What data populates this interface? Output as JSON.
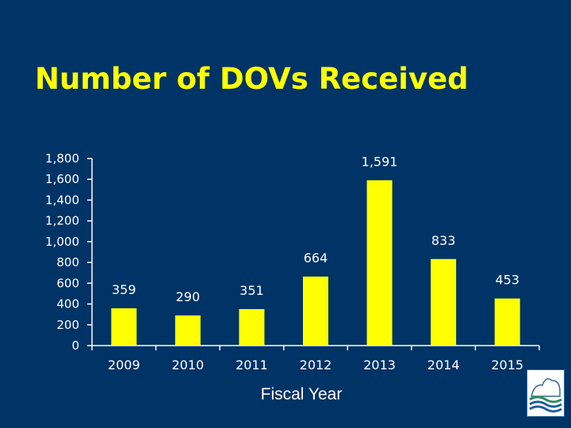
{
  "slide": {
    "title": "Number of DOVs Received",
    "background_color": "#003366",
    "title_color": "#ffff00",
    "logo_icon": "agency-seal-icon"
  },
  "chart_data": {
    "type": "bar",
    "title": "Number of DOVs Received",
    "xlabel": "Fiscal Year",
    "ylabel": "",
    "categories": [
      "2009",
      "2010",
      "2011",
      "2012",
      "2013",
      "2014",
      "2015"
    ],
    "values": [
      359,
      290,
      351,
      664,
      1591,
      833,
      453
    ],
    "value_labels": [
      "359",
      "290",
      "351",
      "664",
      "1,591",
      "833",
      "453"
    ],
    "ylim": [
      0,
      1800
    ],
    "yticks": [
      0,
      200,
      400,
      600,
      800,
      1000,
      1200,
      1400,
      1600,
      1800
    ],
    "ytick_labels": [
      "0",
      "200",
      "400",
      "600",
      "800",
      "1,000",
      "1,200",
      "1,400",
      "1,600",
      "1,800"
    ],
    "bar_color": "#ffff00",
    "grid": false,
    "legend": "none"
  }
}
